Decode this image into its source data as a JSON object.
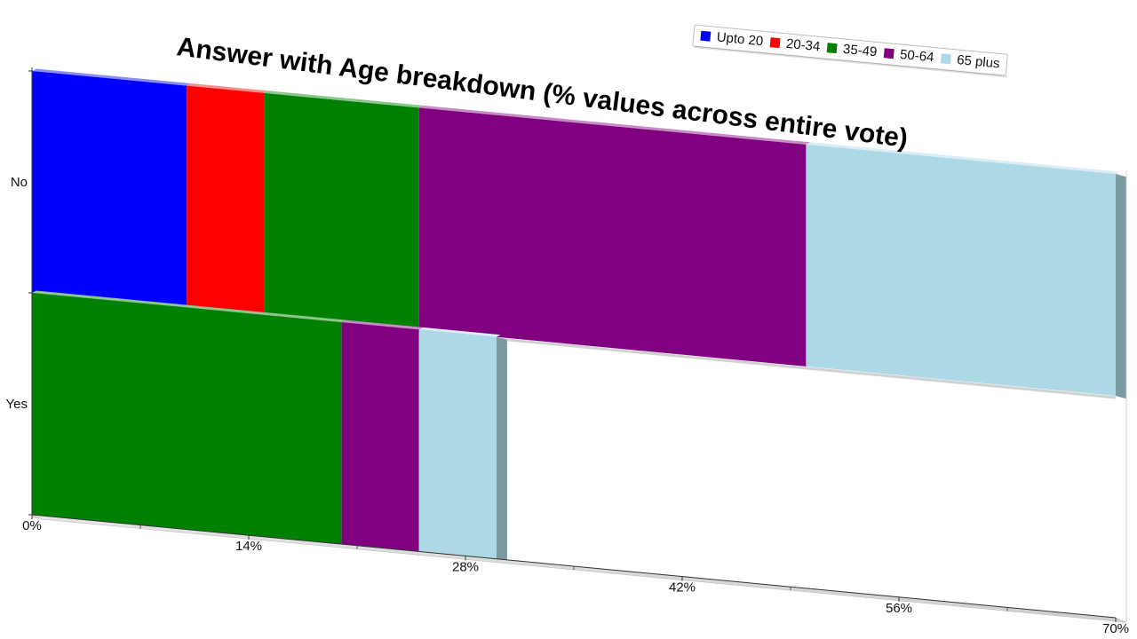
{
  "chart_data": {
    "type": "bar",
    "orientation": "horizontal",
    "stacked": true,
    "title": "Answer with Age breakdown (% values across entire vote)",
    "categories": [
      "No",
      "Yes"
    ],
    "series": [
      {
        "name": "Upto 20",
        "color": "#0000ff",
        "values": [
          10,
          0
        ]
      },
      {
        "name": "20-34",
        "color": "#ff0000",
        "values": [
          5,
          0
        ]
      },
      {
        "name": "35-49",
        "color": "#008000",
        "values": [
          10,
          20
        ]
      },
      {
        "name": "50-64",
        "color": "#800080",
        "values": [
          25,
          5
        ]
      },
      {
        "name": "65 plus",
        "color": "#add8e6",
        "values": [
          20,
          5
        ]
      }
    ],
    "x_ticks": [
      "0%",
      "14%",
      "28%",
      "42%",
      "56%",
      "70%"
    ],
    "xlim": [
      0,
      70
    ],
    "legend_position": "top-right",
    "grid": false
  }
}
